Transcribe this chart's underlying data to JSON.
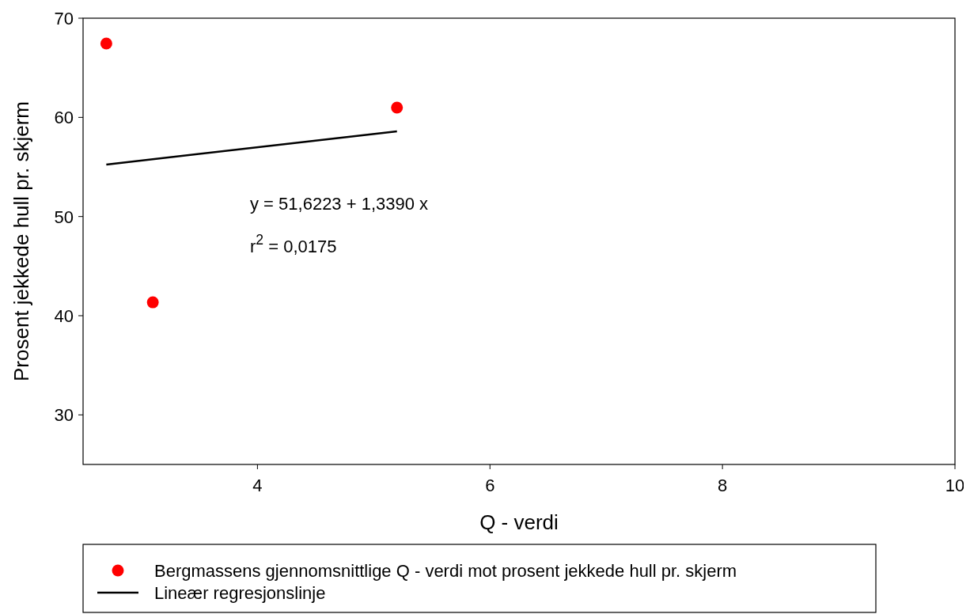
{
  "chart_data": {
    "type": "scatter",
    "xlabel": "Q - verdi",
    "ylabel": "Prosent jekkede hull pr. skjerm",
    "x": [
      2.7,
      3.1,
      5.2
    ],
    "series": [
      {
        "name": "Bergmassens gjennomsnittlige Q - verdi mot prosent jekkede hull pr. skjerm",
        "color": "#ff0000",
        "marker": "circle",
        "values": [
          67.45,
          41.35,
          60.98
        ]
      },
      {
        "name": "Lineær regresjonslinje",
        "type": "line",
        "color": "#000000",
        "x": [
          2.7,
          5.2
        ],
        "values": [
          55.24,
          58.59
        ]
      }
    ],
    "annotations": [
      "y = 51,6223 + 1,3390 x",
      "r$^{2}$ = 0,0175"
    ],
    "xlim": [
      2.5,
      10
    ],
    "ylim": [
      25,
      70
    ],
    "xticks": [
      4,
      6,
      8,
      10
    ],
    "yticks": [
      30,
      40,
      50,
      60,
      70
    ],
    "grid": false,
    "legend": "bottom",
    "line_style": "solid"
  }
}
